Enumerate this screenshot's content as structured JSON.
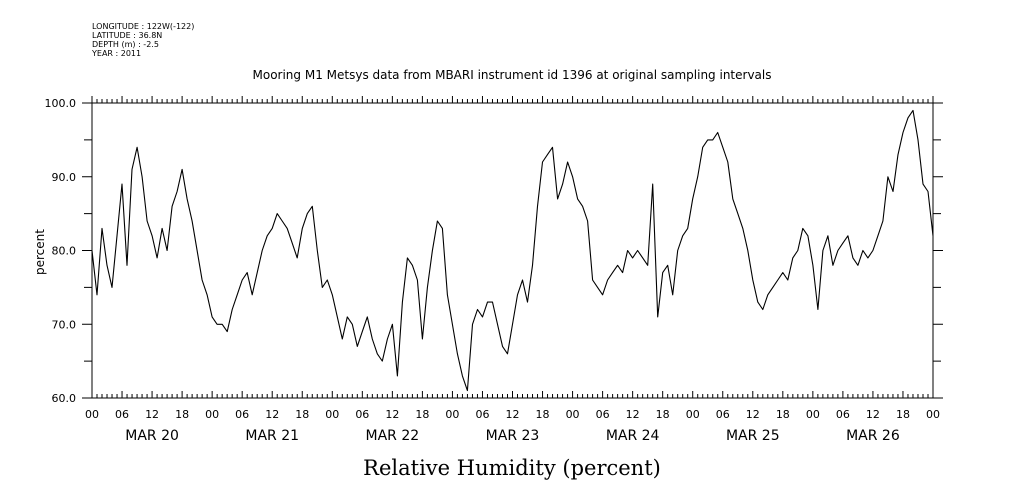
{
  "meta": {
    "longitude": "LONGITUDE : 122W(-122)",
    "latitude": "LATITUDE : 36.8N",
    "depth": "DEPTH (m) : -2.5",
    "year": "YEAR : 2011"
  },
  "chart_data": {
    "type": "line",
    "title": "Mooring M1 Metsys data from MBARI instrument id 1396 at original sampling intervals",
    "xlabel": "Relative Humidity (percent)",
    "ylabel": "percent",
    "ylim": [
      60,
      100
    ],
    "yticks": [
      60,
      70,
      80,
      90,
      100
    ],
    "xlim_hours": [
      0,
      168
    ],
    "hour_tick_labels": [
      "00",
      "06",
      "12",
      "18"
    ],
    "day_labels": [
      "MAR 20",
      "MAR 21",
      "MAR 22",
      "MAR 23",
      "MAR 24",
      "MAR 25",
      "MAR 26"
    ],
    "grid": false,
    "series": [
      {
        "x_hours": [
          0,
          1,
          2,
          3,
          4,
          5,
          6,
          7,
          8,
          9,
          10,
          11,
          12,
          13,
          14,
          15,
          16,
          17,
          18,
          19,
          20,
          21,
          22,
          23,
          24,
          25,
          26,
          27,
          28,
          29,
          30,
          31,
          32,
          33,
          34,
          35,
          36,
          37,
          38,
          39,
          40,
          41,
          42,
          43,
          44,
          45,
          46,
          47,
          48,
          49,
          50,
          51,
          52,
          53,
          54,
          55,
          56,
          57,
          58,
          59,
          60,
          61,
          62,
          63,
          64,
          65,
          66,
          67,
          68,
          69,
          70,
          71,
          72,
          73,
          74,
          75,
          76,
          77,
          78,
          79,
          80,
          81,
          82,
          83,
          84,
          85,
          86,
          87,
          88,
          89,
          90,
          91,
          92,
          93,
          94,
          95,
          96,
          97,
          98,
          99,
          100,
          101,
          102,
          103,
          104,
          105,
          106,
          107,
          108,
          109,
          110,
          111,
          112,
          113,
          114,
          115,
          116,
          117,
          118,
          119,
          120,
          121,
          122,
          123,
          124,
          125,
          126,
          127,
          128,
          129,
          130,
          131,
          132,
          133,
          134,
          135,
          136,
          137,
          138,
          139,
          140,
          141,
          142,
          143,
          144,
          145,
          146,
          147,
          148,
          149,
          150,
          151,
          152,
          153,
          154,
          155,
          156,
          157,
          158,
          159,
          160,
          161,
          162,
          163,
          164,
          165,
          166,
          167,
          168
        ],
        "values": [
          80,
          74,
          83,
          78,
          75,
          82,
          89,
          78,
          91,
          94,
          90,
          84,
          82,
          79,
          83,
          80,
          86,
          88,
          91,
          87,
          84,
          80,
          76,
          74,
          71,
          70,
          70,
          69,
          72,
          74,
          76,
          77,
          74,
          77,
          80,
          82,
          83,
          85,
          84,
          83,
          81,
          79,
          83,
          85,
          86,
          80,
          75,
          76,
          74,
          71,
          68,
          71,
          70,
          67,
          69,
          71,
          68,
          66,
          65,
          68,
          70,
          63,
          73,
          79,
          78,
          76,
          68,
          75,
          80,
          84,
          83,
          74,
          70,
          66,
          63,
          61,
          70,
          72,
          71,
          73,
          73,
          70,
          67,
          66,
          70,
          74,
          76,
          73,
          78,
          86,
          92,
          93,
          94,
          87,
          89,
          92,
          90,
          87,
          86,
          84,
          76,
          75,
          74,
          76,
          77,
          78,
          77,
          80,
          79,
          80,
          79,
          78,
          89,
          71,
          77,
          78,
          74,
          80,
          82,
          83,
          87,
          90,
          94,
          95,
          95,
          96,
          94,
          92,
          87,
          85,
          83,
          80,
          76,
          73,
          72,
          74,
          75,
          76,
          77,
          76,
          79,
          80,
          83,
          82,
          78,
          72,
          80,
          82,
          78,
          80,
          81,
          82,
          79,
          78,
          80,
          79,
          80,
          82,
          84,
          90,
          88,
          93,
          96,
          98,
          99,
          95,
          89,
          88,
          82
        ]
      }
    ]
  }
}
